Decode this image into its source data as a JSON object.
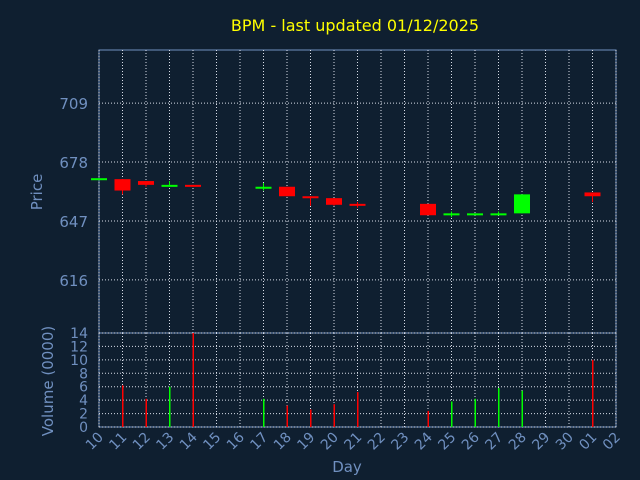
{
  "chart_data": [
    {
      "type": "candlestick",
      "title": "BPM - last updated 01/12/2025",
      "ylabel": "Price",
      "xlabel": "",
      "ylim": [
        588,
        737
      ],
      "yticks": [
        616,
        647,
        678,
        709
      ],
      "grid": true,
      "colors": {
        "up": "#00ff00",
        "down": "#ff0000"
      },
      "candles": [
        {
          "day": "10",
          "open": 669.0,
          "high": 669.0,
          "low": 669.0,
          "close": 669.5
        },
        {
          "day": "11",
          "open": 669.0,
          "high": 669.0,
          "low": 661.0,
          "close": 663.0
        },
        {
          "day": "12",
          "open": 668.0,
          "high": 668.0,
          "low": 665.0,
          "close": 666.0
        },
        {
          "day": "13",
          "open": 665.0,
          "high": 668.0,
          "low": 665.0,
          "close": 666.0
        },
        {
          "day": "14",
          "open": 666.0,
          "high": 666.0,
          "low": 665.0,
          "close": 665.5
        },
        {
          "day": "17",
          "open": 664.5,
          "high": 667.0,
          "low": 663.0,
          "close": 665.0
        },
        {
          "day": "18",
          "open": 665.0,
          "high": 665.0,
          "low": 660.0,
          "close": 660.0
        },
        {
          "day": "19",
          "open": 660.0,
          "high": 660.0,
          "low": 655.0,
          "close": 659.0
        },
        {
          "day": "20",
          "open": 659.0,
          "high": 659.0,
          "low": 655.0,
          "close": 655.5
        },
        {
          "day": "21",
          "open": 656.0,
          "high": 657.0,
          "low": 654.0,
          "close": 655.0
        },
        {
          "day": "24",
          "open": 656.0,
          "high": 656.0,
          "low": 650.0,
          "close": 650.0
        },
        {
          "day": "25",
          "open": 650.0,
          "high": 652.0,
          "low": 649.0,
          "close": 651.0
        },
        {
          "day": "26",
          "open": 650.0,
          "high": 651.0,
          "low": 650.0,
          "close": 651.0
        },
        {
          "day": "27",
          "open": 650.0,
          "high": 652.0,
          "low": 650.0,
          "close": 651.0
        },
        {
          "day": "28",
          "open": 651.0,
          "high": 661.0,
          "low": 651.0,
          "close": 661.0
        },
        {
          "day": "01",
          "open": 662.0,
          "high": 662.0,
          "low": 657.0,
          "close": 660.0
        }
      ]
    },
    {
      "type": "bar",
      "ylabel": "Volume (0000)",
      "xlabel": "Day",
      "ylim": [
        0,
        14
      ],
      "yticks": [
        0,
        2,
        4,
        6,
        8,
        10,
        12,
        14
      ],
      "grid": true,
      "categories": [
        "10",
        "11",
        "12",
        "13",
        "14",
        "15",
        "16",
        "17",
        "18",
        "19",
        "20",
        "21",
        "22",
        "23",
        "24",
        "25",
        "26",
        "27",
        "28",
        "29",
        "30",
        "01",
        "02"
      ],
      "values": [
        0,
        6.2,
        4.2,
        6.0,
        14.0,
        0,
        0,
        4.2,
        3.2,
        2.6,
        3.4,
        5.2,
        0,
        0,
        2.4,
        3.8,
        4.2,
        5.8,
        5.4,
        0,
        0,
        10.0,
        0
      ],
      "bar_colors": [
        "#00ff00",
        "#ff0000",
        "#ff0000",
        "#00ff00",
        "#ff0000",
        "#00ff00",
        "#00ff00",
        "#00ff00",
        "#ff0000",
        "#ff0000",
        "#ff0000",
        "#ff0000",
        "#00ff00",
        "#00ff00",
        "#ff0000",
        "#00ff00",
        "#00ff00",
        "#00ff00",
        "#00ff00",
        "#00ff00",
        "#00ff00",
        "#ff0000",
        "#00ff00"
      ]
    }
  ],
  "colors": {
    "background": "#0f1f30",
    "title": "#ffff00",
    "axis_text": "#7090c0",
    "grid": "#d8dde8",
    "frame": "#7090c0"
  }
}
